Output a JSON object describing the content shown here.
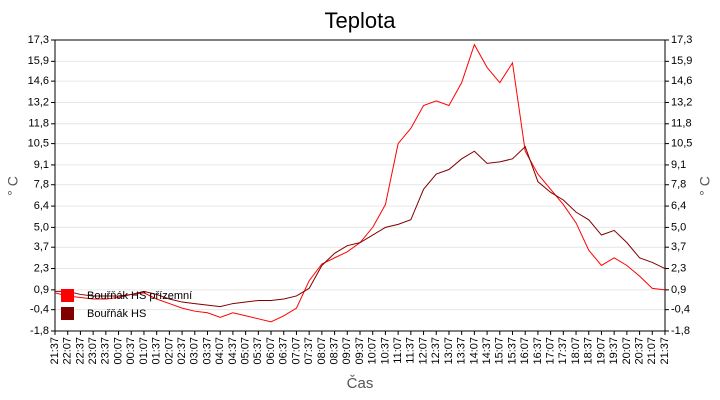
{
  "chart_data": {
    "type": "line",
    "title": "Teplota",
    "x_label": "Čas",
    "y_label": "° C",
    "y2_label": "° C",
    "categories": [
      "21:37",
      "22:07",
      "22:37",
      "23:07",
      "23:37",
      "00:07",
      "00:37",
      "01:07",
      "01:37",
      "02:07",
      "02:37",
      "03:07",
      "03:37",
      "04:07",
      "04:37",
      "05:07",
      "05:37",
      "06:07",
      "06:37",
      "07:07",
      "07:37",
      "08:07",
      "08:37",
      "09:07",
      "09:37",
      "10:07",
      "10:37",
      "11:07",
      "11:37",
      "12:07",
      "12:37",
      "13:07",
      "13:37",
      "14:07",
      "14:37",
      "15:07",
      "15:37",
      "16:07",
      "16:37",
      "17:07",
      "17:37",
      "18:07",
      "18:37",
      "19:07",
      "19:37",
      "20:07",
      "20:37",
      "21:07",
      "21:37"
    ],
    "series": [
      {
        "name": "Bouřňák HS přízemní",
        "color": "#ff0000",
        "values": [
          0.7,
          0.5,
          0.4,
          0.3,
          0.3,
          0.4,
          0.6,
          0.7,
          0.3,
          0.0,
          -0.3,
          -0.5,
          -0.6,
          -0.9,
          -0.6,
          -0.8,
          -1.0,
          -1.2,
          -0.8,
          -0.3,
          1.5,
          2.6,
          3.0,
          3.4,
          4.0,
          5.0,
          6.5,
          10.5,
          11.5,
          13.0,
          13.3,
          13.0,
          14.5,
          17.0,
          15.5,
          14.5,
          15.8,
          10.0,
          8.5,
          7.5,
          6.5,
          5.3,
          3.5,
          2.5,
          3.0,
          2.5,
          1.8,
          1.0,
          0.9
        ]
      },
      {
        "name": "Bouřňák HS",
        "color": "#800000",
        "values": [
          0.8,
          0.8,
          0.6,
          0.5,
          0.5,
          0.5,
          0.6,
          0.8,
          0.6,
          0.3,
          0.1,
          0.0,
          -0.1,
          -0.2,
          0.0,
          0.1,
          0.2,
          0.2,
          0.3,
          0.5,
          1.0,
          2.5,
          3.3,
          3.8,
          4.0,
          4.5,
          5.0,
          5.2,
          5.5,
          7.5,
          8.5,
          8.8,
          9.5,
          10.0,
          9.2,
          9.3,
          9.5,
          10.3,
          8.0,
          7.3,
          6.8,
          6.0,
          5.5,
          4.5,
          4.8,
          4.0,
          3.0,
          2.7,
          2.3
        ]
      }
    ],
    "ylim": [
      -1.8,
      17.3
    ],
    "yticks": [
      {
        "value": -1.8,
        "label": "-1,8"
      },
      {
        "value": -0.4,
        "label": "-0,4"
      },
      {
        "value": 0.9,
        "label": "0,9"
      },
      {
        "value": 2.3,
        "label": "2,3"
      },
      {
        "value": 3.7,
        "label": "3,7"
      },
      {
        "value": 5.0,
        "label": "5,0"
      },
      {
        "value": 6.4,
        "label": "6,4"
      },
      {
        "value": 7.8,
        "label": "7,8"
      },
      {
        "value": 9.1,
        "label": "9,1"
      },
      {
        "value": 10.5,
        "label": "10,5"
      },
      {
        "value": 11.8,
        "label": "11,8"
      },
      {
        "value": 13.2,
        "label": "13,2"
      },
      {
        "value": 14.6,
        "label": "14,6"
      },
      {
        "value": 15.9,
        "label": "15,9"
      },
      {
        "value": 17.3,
        "label": "17,3"
      }
    ],
    "grid": true,
    "legend": "lower left"
  }
}
